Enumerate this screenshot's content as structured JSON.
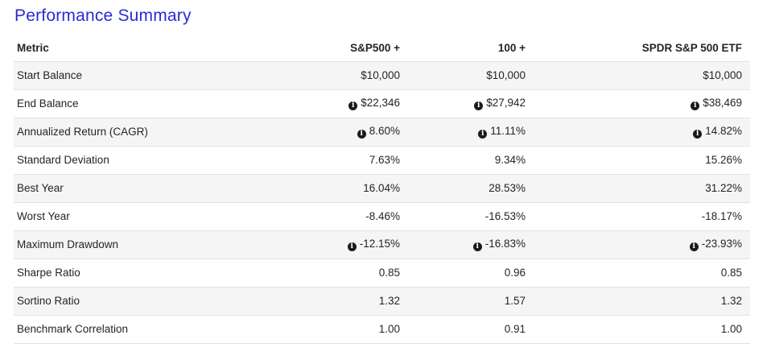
{
  "title": "Performance Summary",
  "table": {
    "headers": [
      "Metric",
      "S&P500 +",
      "100 +",
      "SPDR S&P 500 ETF"
    ],
    "rows": [
      {
        "metric": "Start Balance",
        "values": [
          "$10,000",
          "$10,000",
          "$10,000"
        ],
        "info": false
      },
      {
        "metric": "End Balance",
        "values": [
          "$22,346",
          "$27,942",
          "$38,469"
        ],
        "info": true
      },
      {
        "metric": "Annualized Return (CAGR)",
        "values": [
          "8.60%",
          "11.11%",
          "14.82%"
        ],
        "info": true
      },
      {
        "metric": "Standard Deviation",
        "values": [
          "7.63%",
          "9.34%",
          "15.26%"
        ],
        "info": false
      },
      {
        "metric": "Best Year",
        "values": [
          "16.04%",
          "28.53%",
          "31.22%"
        ],
        "info": false
      },
      {
        "metric": "Worst Year",
        "values": [
          "-8.46%",
          "-16.53%",
          "-18.17%"
        ],
        "info": false
      },
      {
        "metric": "Maximum Drawdown",
        "values": [
          "-12.15%",
          "-16.83%",
          "-23.93%"
        ],
        "info": true
      },
      {
        "metric": "Sharpe Ratio",
        "values": [
          "0.85",
          "0.96",
          "0.85"
        ],
        "info": false
      },
      {
        "metric": "Sortino Ratio",
        "values": [
          "1.32",
          "1.57",
          "1.32"
        ],
        "info": false
      },
      {
        "metric": "Benchmark Correlation",
        "values": [
          "1.00",
          "0.91",
          "1.00"
        ],
        "info": false
      }
    ]
  },
  "icons": {
    "info": "info-circle-icon"
  }
}
